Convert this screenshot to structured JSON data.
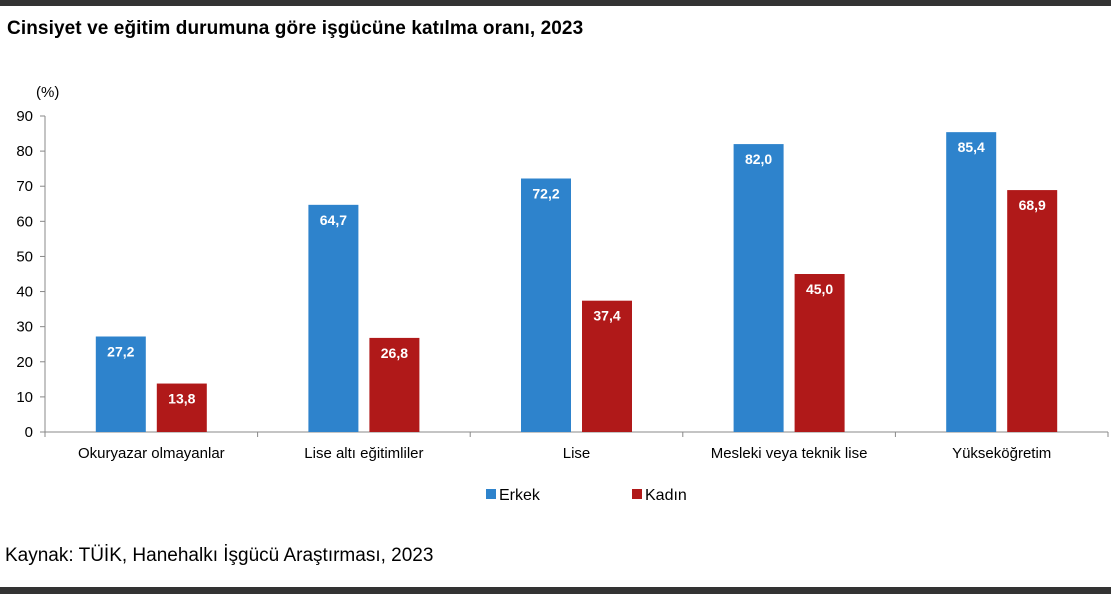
{
  "title": "Cinsiyet ve eğitim durumuna göre işgücüne katılma oranı, 2023",
  "source": "Kaynak: TÜİK, Hanehalkı İşgücü Araştırması, 2023",
  "colors": {
    "erkek": "#2e83cc",
    "kadin": "#b01919",
    "axis": "#888888"
  },
  "chart_data": {
    "type": "bar",
    "title": "Cinsiyet ve eğitim durumuna göre işgücüne katılma oranı, 2023",
    "ylabel": "(%)",
    "xlabel": "",
    "ylim": [
      0,
      90
    ],
    "yticks": [
      0,
      10,
      20,
      30,
      40,
      50,
      60,
      70,
      80,
      90
    ],
    "grid": false,
    "legend": "bottom-center",
    "categories": [
      "Okuryazar olmayanlar",
      "Lise altı eğitimliler",
      "Lise",
      "Mesleki veya teknik lise",
      "Yükseköğretim"
    ],
    "series": [
      {
        "name": "Erkek",
        "values": [
          27.2,
          64.7,
          72.2,
          82.0,
          85.4
        ],
        "labels": [
          "27,2",
          "64,7",
          "72,2",
          "82,0",
          "85,4"
        ]
      },
      {
        "name": "Kadın",
        "values": [
          13.8,
          26.8,
          37.4,
          45.0,
          68.9
        ],
        "labels": [
          "13,8",
          "26,8",
          "37,4",
          "45,0",
          "68,9"
        ]
      }
    ]
  }
}
